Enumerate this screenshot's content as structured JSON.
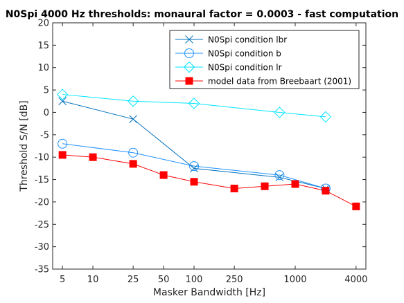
{
  "chart_data": {
    "type": "line",
    "title": "N0Spi 4000 Hz thresholds: monaural factor = 0.0003 - fast computation",
    "xlabel": "Masker Bandwidth [Hz]",
    "ylabel": "Threshold S/N [dB]",
    "x_scale": "log",
    "xlim": [
      4,
      5000
    ],
    "ylim": [
      -35,
      20
    ],
    "x_ticks": [
      5,
      10,
      25,
      50,
      100,
      250,
      1000,
      4000
    ],
    "x_tick_labels": [
      "5",
      "10",
      "25",
      "50",
      "100",
      "250",
      "1000",
      "4000"
    ],
    "y_ticks": [
      -35,
      -30,
      -25,
      -20,
      -15,
      -10,
      -5,
      0,
      5,
      10,
      15,
      20
    ],
    "y_tick_labels": [
      "-35",
      "-30",
      "-25",
      "-20",
      "-15",
      "-10",
      "-5",
      "0",
      "5",
      "10",
      "15",
      "20"
    ],
    "grid": false,
    "legend_position": "top-right",
    "series": [
      {
        "name": "N0Spi condition lbr",
        "marker": "x",
        "color": "#0072BD",
        "x": [
          5,
          25,
          100,
          700,
          2000
        ],
        "y": [
          2.5,
          -1.5,
          -12.5,
          -14.5,
          -17
        ]
      },
      {
        "name": "N0Spi condition b",
        "marker": "circle",
        "color": "#1E90FF",
        "x": [
          5,
          25,
          100,
          700,
          2000
        ],
        "y": [
          -7,
          -9,
          -12,
          -14,
          -17
        ]
      },
      {
        "name": "N0Spi condition lr",
        "marker": "diamond",
        "color": "#00E5FF",
        "x": [
          5,
          25,
          100,
          700,
          2000
        ],
        "y": [
          4,
          2.5,
          2,
          0,
          -1
        ]
      },
      {
        "name": "model data from Breebaart (2001)",
        "marker": "square",
        "color": "#FF0000",
        "x": [
          5,
          10,
          25,
          50,
          100,
          250,
          500,
          1000,
          2000,
          4000
        ],
        "y": [
          -9.5,
          -10,
          -11.5,
          -14,
          -15.5,
          -17,
          -16.5,
          -16,
          -17.5,
          -21
        ]
      }
    ]
  }
}
